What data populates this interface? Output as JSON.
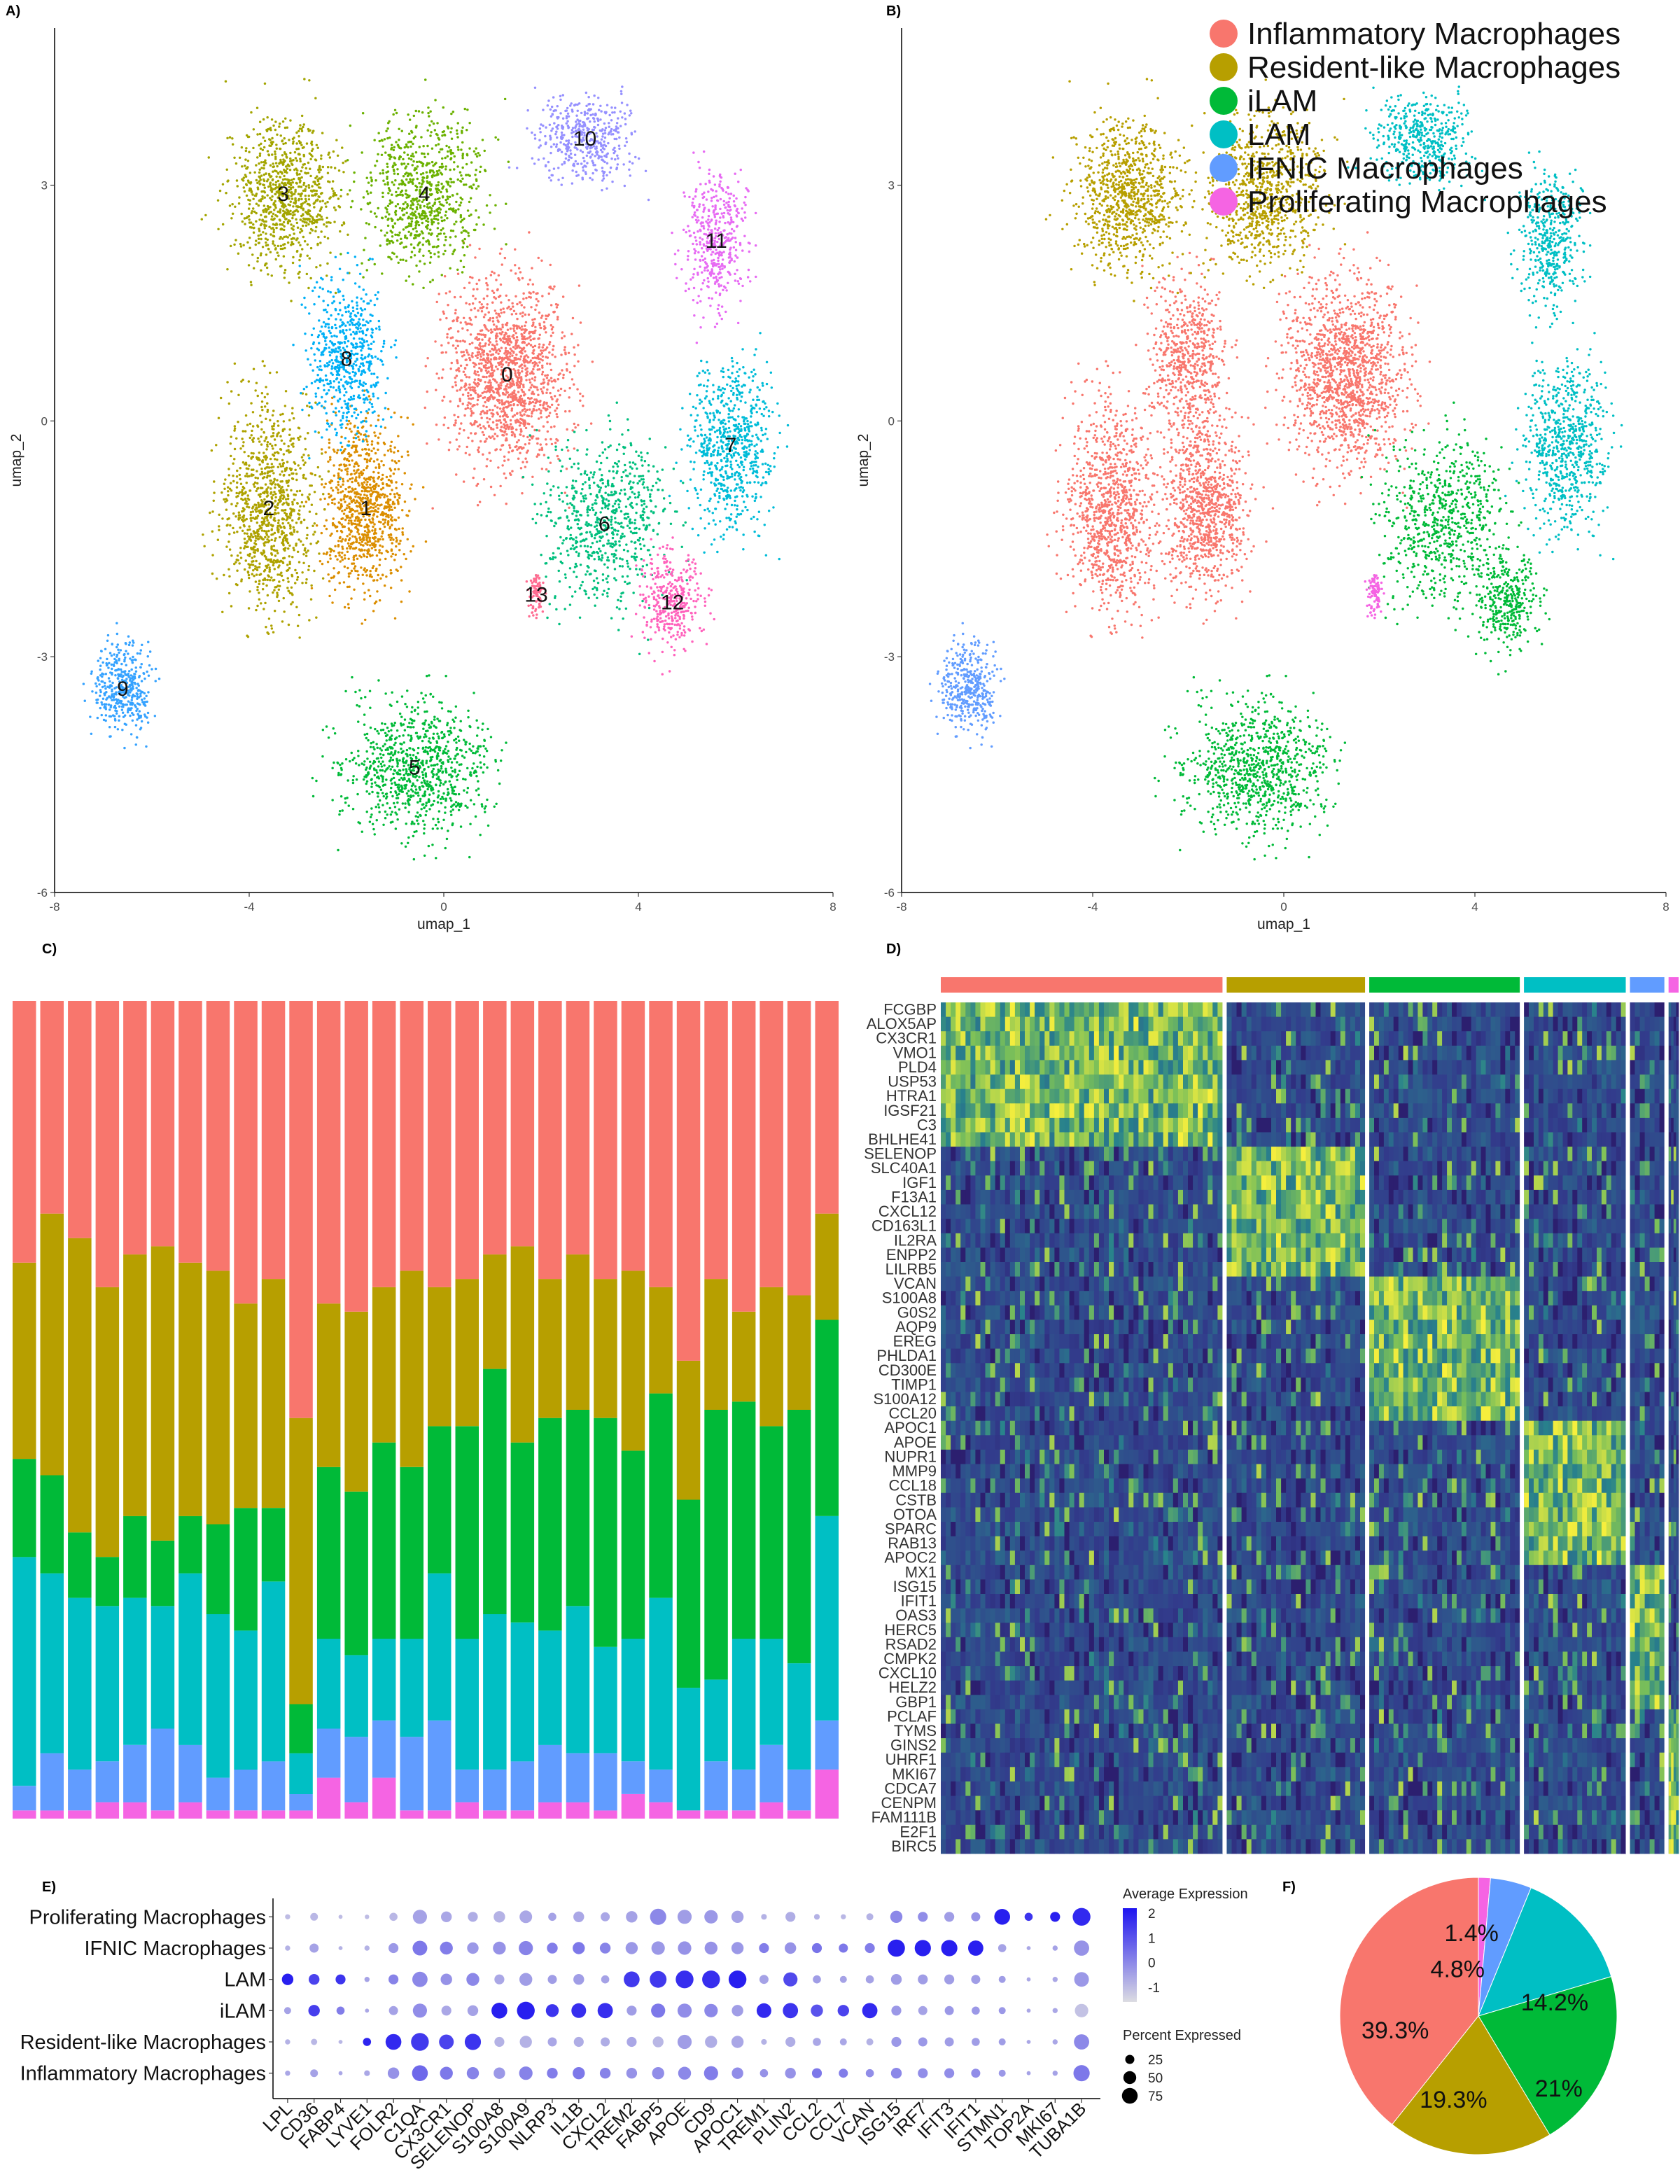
{
  "colors": {
    "inflammatory": "#F8766D",
    "resident": "#B79F00",
    "ilam": "#00BA38",
    "lam": "#00BFC4",
    "ifnic": "#619CFF",
    "proliferating": "#F564E3"
  },
  "panels": {
    "a": "A)",
    "b": "B)",
    "c": "C)",
    "d": "D)",
    "e": "E)",
    "f": "F)"
  },
  "chart_data": [
    {
      "panel": "A",
      "type": "scatter",
      "xlabel": "umap_1",
      "ylabel": "umap_2",
      "xlim": [
        -8,
        8
      ],
      "ylim": [
        -6,
        5
      ],
      "xticks": [
        "-8",
        "-4",
        "0",
        "4",
        "8"
      ],
      "yticks": [
        "-6",
        "-3",
        "0",
        "3"
      ],
      "clusters": [
        {
          "label": "0",
          "color": "#F8766D",
          "x": 1.3,
          "y": 0.6
        },
        {
          "label": "1",
          "color": "#DB8E00",
          "x": -1.6,
          "y": -1.1
        },
        {
          "label": "2",
          "color": "#AEA200",
          "x": -3.6,
          "y": -1.1
        },
        {
          "label": "3",
          "color": "#A3A500",
          "x": -3.3,
          "y": 2.9
        },
        {
          "label": "4",
          "color": "#6BB100",
          "x": -0.4,
          "y": 2.9
        },
        {
          "label": "5",
          "color": "#00BA38",
          "x": -0.6,
          "y": -4.4
        },
        {
          "label": "6",
          "color": "#00BF7D",
          "x": 3.3,
          "y": -1.3
        },
        {
          "label": "7",
          "color": "#00BCD8",
          "x": 5.9,
          "y": -0.3
        },
        {
          "label": "8",
          "color": "#00B0F6",
          "x": -2.0,
          "y": 0.8
        },
        {
          "label": "9",
          "color": "#35A2FF",
          "x": -6.6,
          "y": -3.4
        },
        {
          "label": "10",
          "color": "#9590FF",
          "x": 2.9,
          "y": 3.6
        },
        {
          "label": "11",
          "color": "#E76BF3",
          "x": 5.6,
          "y": 2.3
        },
        {
          "label": "12",
          "color": "#FF62BC",
          "x": 4.7,
          "y": -2.3
        },
        {
          "label": "13",
          "color": "#FF6C91",
          "x": 1.9,
          "y": -2.2
        }
      ]
    },
    {
      "panel": "B",
      "type": "scatter",
      "xlabel": "umap_1",
      "ylabel": "umap_2",
      "xlim": [
        -8,
        8
      ],
      "ylim": [
        -6,
        5
      ],
      "xticks": [
        "-8",
        "-4",
        "0",
        "4",
        "8"
      ],
      "yticks": [
        "-6",
        "-3",
        "0",
        "3"
      ],
      "legend_position": "top-right",
      "series": [
        {
          "name": "Inflammatory Macrophages",
          "color": "#F8766D"
        },
        {
          "name": "Resident-like Macrophages",
          "color": "#B79F00"
        },
        {
          "name": "iLAM",
          "color": "#00BA38"
        },
        {
          "name": "LAM",
          "color": "#00BFC4"
        },
        {
          "name": "IFNIC Macrophages",
          "color": "#619CFF"
        },
        {
          "name": "Proliferating Macrophages",
          "color": "#F564E3"
        }
      ]
    },
    {
      "panel": "C",
      "type": "bar",
      "stacked": true,
      "series_order": [
        "Proliferating Macrophages",
        "IFNIC Macrophages",
        "LAM",
        "iLAM",
        "Resident-like Macrophages",
        "Inflammatory Macrophages"
      ],
      "bars": [
        [
          0.01,
          0.03,
          0.28,
          0.12,
          0.24,
          0.32
        ],
        [
          0.01,
          0.07,
          0.22,
          0.12,
          0.32,
          0.26
        ],
        [
          0.01,
          0.05,
          0.21,
          0.08,
          0.36,
          0.29
        ],
        [
          0.02,
          0.05,
          0.19,
          0.06,
          0.33,
          0.35
        ],
        [
          0.02,
          0.07,
          0.18,
          0.1,
          0.32,
          0.31
        ],
        [
          0.01,
          0.1,
          0.15,
          0.08,
          0.36,
          0.3
        ],
        [
          0.02,
          0.07,
          0.21,
          0.07,
          0.31,
          0.32
        ],
        [
          0.01,
          0.04,
          0.2,
          0.11,
          0.31,
          0.33
        ],
        [
          0.01,
          0.05,
          0.17,
          0.15,
          0.25,
          0.37
        ],
        [
          0.01,
          0.06,
          0.22,
          0.09,
          0.28,
          0.34
        ],
        [
          0.01,
          0.02,
          0.05,
          0.06,
          0.35,
          0.51
        ],
        [
          0.05,
          0.06,
          0.11,
          0.21,
          0.2,
          0.37
        ],
        [
          0.02,
          0.08,
          0.1,
          0.2,
          0.22,
          0.38
        ],
        [
          0.05,
          0.07,
          0.1,
          0.24,
          0.19,
          0.35
        ],
        [
          0.01,
          0.09,
          0.12,
          0.21,
          0.24,
          0.33
        ],
        [
          0.01,
          0.11,
          0.18,
          0.18,
          0.17,
          0.35
        ],
        [
          0.02,
          0.04,
          0.16,
          0.26,
          0.18,
          0.34
        ],
        [
          0.01,
          0.05,
          0.19,
          0.3,
          0.14,
          0.31
        ],
        [
          0.01,
          0.06,
          0.17,
          0.22,
          0.24,
          0.3
        ],
        [
          0.02,
          0.07,
          0.14,
          0.26,
          0.17,
          0.34
        ],
        [
          0.02,
          0.06,
          0.18,
          0.24,
          0.19,
          0.31
        ],
        [
          0.01,
          0.07,
          0.13,
          0.28,
          0.17,
          0.34
        ],
        [
          0.03,
          0.04,
          0.15,
          0.23,
          0.22,
          0.33
        ],
        [
          0.02,
          0.04,
          0.21,
          0.25,
          0.13,
          0.35
        ],
        [
          0.01,
          0.0,
          0.15,
          0.23,
          0.17,
          0.44
        ],
        [
          0.01,
          0.06,
          0.1,
          0.33,
          0.16,
          0.34
        ],
        [
          0.01,
          0.05,
          0.16,
          0.29,
          0.11,
          0.38
        ],
        [
          0.02,
          0.07,
          0.13,
          0.26,
          0.17,
          0.35
        ],
        [
          0.01,
          0.05,
          0.13,
          0.31,
          0.14,
          0.36
        ],
        [
          0.06,
          0.06,
          0.25,
          0.24,
          0.13,
          0.26
        ]
      ]
    },
    {
      "panel": "D",
      "type": "heatmap",
      "groups": [
        {
          "name": "Inflammatory Macrophages",
          "color": "#F8766D",
          "fraction": 0.393
        },
        {
          "name": "Resident-like Macrophages",
          "color": "#B79F00",
          "fraction": 0.193
        },
        {
          "name": "iLAM",
          "color": "#00BA38",
          "fraction": 0.21
        },
        {
          "name": "LAM",
          "color": "#00BFC4",
          "fraction": 0.142
        },
        {
          "name": "IFNIC Macrophages",
          "color": "#619CFF",
          "fraction": 0.048
        },
        {
          "name": "Proliferating Macrophages",
          "color": "#F564E3",
          "fraction": 0.014
        }
      ],
      "gene_blocks": [
        [
          "FCGBP",
          "ALOX5AP",
          "CX3CR1",
          "VMO1",
          "PLD4",
          "USP53",
          "HTRA1",
          "IGSF21",
          "C3",
          "BHLHE41"
        ],
        [
          "SELENOP",
          "SLC40A1",
          "IGF1",
          "F13A1",
          "CXCL12",
          "CD163L1",
          "IL2RA",
          "ENPP2",
          "LILRB5"
        ],
        [
          "VCAN",
          "S100A8",
          "G0S2",
          "AQP9",
          "EREG",
          "PHLDA1",
          "CD300E",
          "TIMP1",
          "S100A12",
          "CCL20"
        ],
        [
          "APOC1",
          "APOE",
          "NUPR1",
          "MMP9",
          "CCL18",
          "CSTB",
          "OTOA",
          "SPARC",
          "RAB13",
          "APOC2"
        ],
        [
          "MX1",
          "ISG15",
          "IFIT1",
          "OAS3",
          "HERC5",
          "RSAD2",
          "CMPK2",
          "CXCL10",
          "HELZ2",
          "GBP1"
        ],
        [
          "PCLAF",
          "TYMS",
          "GINS2",
          "UHRF1",
          "MKI67",
          "CDCA7",
          "CENPM",
          "FAM111B",
          "E2F1",
          "BIRC5"
        ]
      ]
    },
    {
      "panel": "E",
      "type": "scatter",
      "subtype": "dotplot",
      "rows": [
        "Proliferating Macrophages",
        "IFNIC Macrophages",
        "LAM",
        "iLAM",
        "Resident-like Macrophages",
        "Inflammatory Macrophages"
      ],
      "genes": [
        "LPL",
        "CD36",
        "FABP4",
        "LYVE1",
        "FOLR2",
        "C1QA",
        "CX3CR1",
        "SELENOP",
        "S100A8",
        "S100A9",
        "NLRP3",
        "IL1B",
        "CXCL2",
        "TREM2",
        "FABP5",
        "APOE",
        "CD9",
        "APOC1",
        "TREM1",
        "PLIN2",
        "CCL2",
        "CCL7",
        "VCAN",
        "ISG15",
        "IRF7",
        "IFIT3",
        "IFIT1",
        "STMN1",
        "TOP2A",
        "MKI67",
        "TUBA1B"
      ],
      "expression_title": "Average Expression",
      "expression_ticks": [
        "2",
        "1",
        "0",
        "-1"
      ],
      "expression_range": [
        -1.6,
        2.2
      ],
      "percent_title": "Percent Expressed",
      "percent_ticks": [
        "25",
        "50",
        "75"
      ],
      "avg_expression": [
        [
          -1.0,
          -0.9,
          -1.0,
          -1.0,
          -0.9,
          -0.5,
          -0.6,
          -0.7,
          -0.8,
          -0.6,
          -0.5,
          -0.6,
          -0.6,
          -0.5,
          0.0,
          -0.4,
          -0.3,
          -0.5,
          -0.8,
          -0.7,
          -0.8,
          -0.9,
          -0.8,
          0.0,
          -0.1,
          -0.4,
          -0.2,
          2.0,
          1.6,
          2.0,
          1.8
        ],
        [
          -0.8,
          -0.5,
          -0.8,
          -0.8,
          -0.3,
          0.3,
          0.2,
          -0.3,
          -0.2,
          0.1,
          0.2,
          0.3,
          0.1,
          -0.3,
          -0.3,
          -0.2,
          -0.2,
          -0.3,
          0.2,
          -0.2,
          0.4,
          0.3,
          0.2,
          2.0,
          2.0,
          2.0,
          2.0,
          -0.5,
          -0.6,
          -0.5,
          -0.2
        ],
        [
          2.0,
          1.3,
          1.6,
          -0.5,
          0.1,
          0.0,
          -0.2,
          0.0,
          -0.6,
          -0.4,
          -0.4,
          -0.4,
          -0.5,
          1.5,
          1.5,
          1.7,
          1.7,
          2.0,
          -0.5,
          1.2,
          -0.4,
          -0.5,
          -0.5,
          -0.4,
          -0.4,
          -0.4,
          -0.4,
          -0.4,
          -0.6,
          -0.6,
          -0.3
        ],
        [
          -0.5,
          1.4,
          0.2,
          -0.6,
          -0.5,
          -0.1,
          -0.6,
          -0.5,
          2.0,
          2.0,
          1.6,
          1.7,
          1.7,
          -0.4,
          0.3,
          -0.1,
          0.0,
          -0.4,
          1.8,
          1.6,
          1.0,
          1.3,
          1.8,
          -0.3,
          -0.5,
          -0.3,
          -0.3,
          -0.3,
          -0.6,
          -0.6,
          -1.1
        ],
        [
          -0.8,
          -0.9,
          -0.9,
          1.9,
          1.8,
          1.5,
          1.3,
          1.6,
          -0.8,
          -0.8,
          -0.6,
          -0.7,
          -0.7,
          -0.6,
          -0.9,
          -0.4,
          -0.7,
          -0.6,
          -0.8,
          -0.7,
          -0.6,
          -0.6,
          -0.8,
          -0.3,
          -0.3,
          -0.4,
          -0.4,
          -0.4,
          -0.6,
          -0.6,
          0.0
        ],
        [
          -0.6,
          -0.5,
          -0.6,
          -0.6,
          -0.2,
          0.6,
          0.3,
          0.1,
          -0.3,
          0.1,
          0.2,
          0.3,
          0.1,
          -0.2,
          -0.1,
          0.0,
          0.2,
          -0.1,
          -0.2,
          -0.2,
          0.3,
          0.2,
          -0.1,
          0.0,
          -0.1,
          -0.1,
          -0.1,
          -0.3,
          -0.5,
          -0.5,
          0.3
        ]
      ],
      "pct_expressed": [
        [
          8,
          18,
          5,
          6,
          20,
          60,
          35,
          30,
          40,
          48,
          20,
          35,
          25,
          40,
          80,
          60,
          55,
          45,
          10,
          30,
          10,
          8,
          15,
          45,
          30,
          30,
          25,
          75,
          20,
          30,
          95
        ],
        [
          8,
          25,
          5,
          8,
          30,
          65,
          50,
          40,
          50,
          60,
          35,
          45,
          35,
          45,
          55,
          55,
          50,
          45,
          30,
          40,
          30,
          25,
          30,
          90,
          80,
          80,
          70,
          20,
          5,
          8,
          70
        ],
        [
          40,
          35,
          30,
          8,
          30,
          70,
          40,
          50,
          30,
          50,
          25,
          35,
          20,
          75,
          85,
          95,
          95,
          95,
          25,
          60,
          20,
          15,
          20,
          35,
          30,
          30,
          25,
          15,
          5,
          8,
          65
        ],
        [
          15,
          40,
          20,
          5,
          25,
          60,
          30,
          35,
          75,
          95,
          50,
          65,
          70,
          30,
          60,
          60,
          55,
          40,
          65,
          70,
          45,
          40,
          70,
          30,
          25,
          25,
          20,
          15,
          5,
          8,
          55
        ],
        [
          8,
          12,
          5,
          20,
          75,
          95,
          65,
          80,
          30,
          45,
          25,
          30,
          25,
          30,
          35,
          60,
          45,
          45,
          10,
          30,
          20,
          15,
          15,
          30,
          25,
          25,
          20,
          15,
          5,
          8,
          70
        ],
        [
          8,
          18,
          5,
          10,
          40,
          75,
          50,
          45,
          40,
          55,
          35,
          45,
          35,
          35,
          45,
          50,
          60,
          40,
          20,
          35,
          30,
          25,
          20,
          35,
          30,
          30,
          25,
          15,
          5,
          8,
          80
        ]
      ]
    },
    {
      "panel": "F",
      "type": "pie",
      "slices": [
        {
          "name": "Inflammatory Macrophages",
          "value": 39.3,
          "label": "39.3%",
          "color": "#F8766D"
        },
        {
          "name": "Resident-like Macrophages",
          "value": 19.3,
          "label": "19.3%",
          "color": "#B79F00"
        },
        {
          "name": "iLAM",
          "value": 21,
          "label": "21%",
          "color": "#00BA38"
        },
        {
          "name": "LAM",
          "value": 14.2,
          "label": "14.2%",
          "color": "#00BFC4"
        },
        {
          "name": "IFNIC Macrophages",
          "value": 4.8,
          "label": "4.8%",
          "color": "#619CFF"
        },
        {
          "name": "Proliferating Macrophages",
          "value": 1.4,
          "label": "1.4%",
          "color": "#F564E3"
        }
      ]
    }
  ]
}
